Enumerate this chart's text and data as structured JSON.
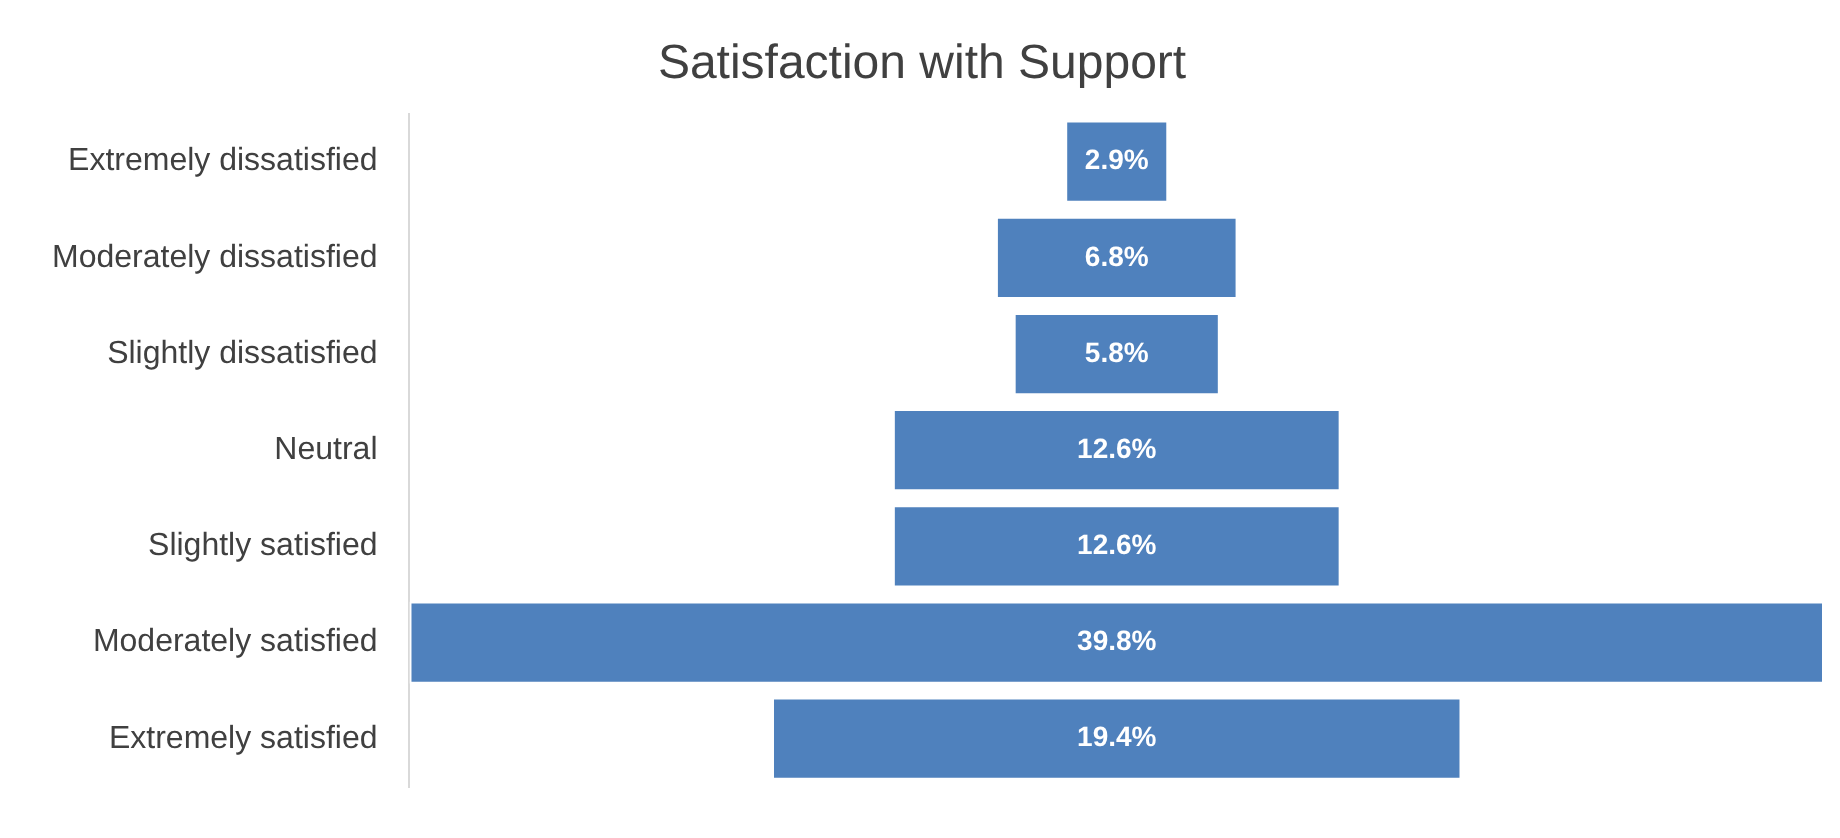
{
  "chart_data": {
    "type": "other",
    "title": "Satisfaction with Support",
    "categories": [
      "Extremely dissatisfied",
      "Moderately dissatisfied",
      "Slightly dissatisfied",
      "Neutral",
      "Slightly satisfied",
      "Moderately satisfied",
      "Extremely satisfied"
    ],
    "values": [
      2.9,
      6.8,
      5.8,
      12.6,
      12.6,
      39.8,
      19.4
    ],
    "value_labels": [
      "2.9%",
      "6.8%",
      "5.8%",
      "12.6%",
      "12.6%",
      "39.8%",
      "19.4%"
    ],
    "color": "#4f81bd"
  }
}
